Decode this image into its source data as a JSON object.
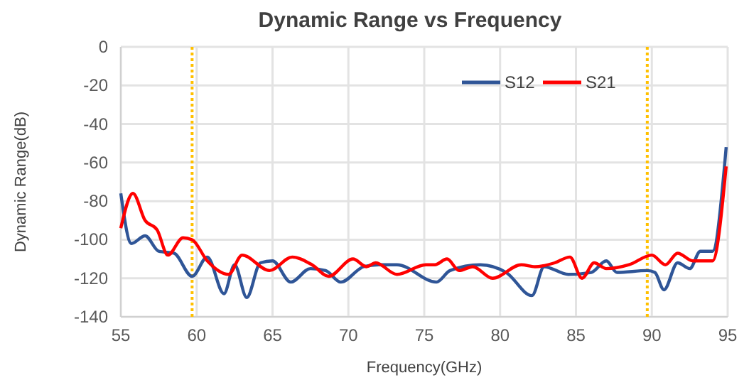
{
  "chart_data": {
    "type": "line",
    "title": "Dynamic Range vs Frequency",
    "xlabel": "Frequency(GHz)",
    "ylabel": "Dynamic Range(dB)",
    "xlim": [
      55,
      95
    ],
    "xticks": [
      55,
      60,
      65,
      70,
      75,
      80,
      85,
      90,
      95
    ],
    "ylim": [
      -140,
      0
    ],
    "yticks": [
      -140,
      -120,
      -100,
      -80,
      -60,
      -40,
      -20,
      0
    ],
    "grid": true,
    "legend": "top right",
    "marker": "none",
    "line_style": "solid",
    "ref_lines": [
      {
        "axis": "x",
        "value": 59.7,
        "color": "#ffc000",
        "line_style": "dotted"
      },
      {
        "axis": "x",
        "value": 89.7,
        "color": "#ffc000",
        "line_style": "dotted"
      }
    ],
    "series": [
      {
        "name": "S12",
        "color": "#2f5597",
        "x": [
          55,
          55.7,
          56.6,
          57.5,
          58.5,
          59.7,
          60.7,
          61.8,
          62.5,
          63.3,
          64.2,
          65,
          66.2,
          67.5,
          68.5,
          69.5,
          71,
          72,
          73.2,
          75.8,
          76.7,
          78.7,
          80.4,
          82.1,
          82.9,
          84.5,
          86,
          87,
          87.7,
          89.7,
          90.2,
          90.8,
          91.7,
          92.5,
          93.2,
          94,
          94.9
        ],
        "values": [
          -76,
          -102,
          -98,
          -106,
          -107,
          -119,
          -109,
          -128,
          -113,
          -130,
          -112,
          -111,
          -122,
          -115,
          -116,
          -122,
          -114,
          -113,
          -113,
          -122,
          -116,
          -113,
          -117,
          -129,
          -114,
          -118,
          -117,
          -111,
          -117,
          -116,
          -117,
          -126,
          -112,
          -115,
          -106,
          -106,
          -52
        ]
      },
      {
        "name": "S21",
        "color": "#ff0000",
        "x": [
          55,
          55.8,
          56.6,
          57.4,
          58.1,
          59.1,
          59.7,
          60.7,
          62.1,
          63,
          64.8,
          66.3,
          67.6,
          68.7,
          70.3,
          71.2,
          71.8,
          73.2,
          75.1,
          75.7,
          76.5,
          77.3,
          78.2,
          79.5,
          81.4,
          82.3,
          83.6,
          84.6,
          85.4,
          86.2,
          87,
          88.5,
          90,
          90.9,
          91.7,
          92.7,
          94,
          94.9
        ],
        "values": [
          -94,
          -76,
          -90,
          -95,
          -108,
          -99,
          -100,
          -111,
          -118,
          -108,
          -116,
          -109,
          -113,
          -119,
          -110,
          -114,
          -112,
          -118,
          -113,
          -113,
          -110,
          -116,
          -114,
          -120,
          -113,
          -114,
          -112,
          -109,
          -120,
          -112,
          -115,
          -113,
          -108,
          -113,
          -107,
          -111,
          -111,
          -62
        ]
      }
    ]
  }
}
